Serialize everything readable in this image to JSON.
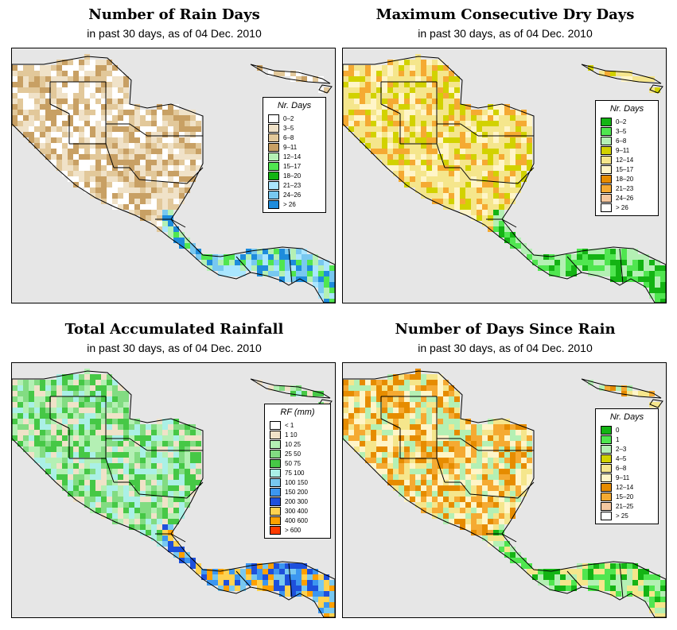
{
  "colors": {
    "ocean": "#e6e6e6",
    "land_border": "#000000"
  },
  "panels": [
    {
      "id": "rain-days",
      "title": "Number of Rain Days",
      "subtitle": "in past 30 days, as of  04 Dec. 2010",
      "legend_title": "Nr. Days",
      "legend": [
        {
          "label": "0–2",
          "color": "#ffffff"
        },
        {
          "label": "3–5",
          "color": "#f0e2c8"
        },
        {
          "label": "6–8",
          "color": "#e2c89a"
        },
        {
          "label": "9–11",
          "color": "#c8a064"
        },
        {
          "label": "12–14",
          "color": "#b4f0b4"
        },
        {
          "label": "15–17",
          "color": "#50e650"
        },
        {
          "label": "18–20",
          "color": "#14b414"
        },
        {
          "label": "21–23",
          "color": "#aae6ff"
        },
        {
          "label": "24–26",
          "color": "#78c8f0"
        },
        {
          "label": "> 26",
          "color": "#1e8cdc"
        }
      ]
    },
    {
      "id": "max-dry-days",
      "title": "Maximum Consecutive Dry Days",
      "subtitle": "in past 30 days, as of  04 Dec. 2010",
      "legend_title": "Nr. Days",
      "legend": [
        {
          "label": "0–2",
          "color": "#14b414"
        },
        {
          "label": "3–5",
          "color": "#50e650"
        },
        {
          "label": "6–8",
          "color": "#b4f0b4"
        },
        {
          "label": "9–11",
          "color": "#d2d200"
        },
        {
          "label": "12–14",
          "color": "#f5e68c"
        },
        {
          "label": "15–17",
          "color": "#fff5c8"
        },
        {
          "label": "18–20",
          "color": "#e68c00"
        },
        {
          "label": "21–23",
          "color": "#f5aa32"
        },
        {
          "label": "24–26",
          "color": "#f5c8a0"
        },
        {
          "label": "> 26",
          "color": "#ffffff"
        }
      ]
    },
    {
      "id": "total-rainfall",
      "title": "Total Accumulated Rainfall",
      "subtitle": "in past 30 days, as of  04 Dec. 2010",
      "legend_title": "RF (mm)",
      "legend": [
        {
          "label": "< 1",
          "color": "#ffffff"
        },
        {
          "label": "1   10",
          "color": "#f0e2c8"
        },
        {
          "label": "10   25",
          "color": "#b4f0b4"
        },
        {
          "label": "25   50",
          "color": "#82dc82"
        },
        {
          "label": "50   75",
          "color": "#46c846"
        },
        {
          "label": "75   100",
          "color": "#aaf0e6"
        },
        {
          "label": "100   150",
          "color": "#78c8f0"
        },
        {
          "label": "150   200",
          "color": "#3c96f0"
        },
        {
          "label": "200   300",
          "color": "#1e50dc"
        },
        {
          "label": "300   400",
          "color": "#ffd250"
        },
        {
          "label": "400   600",
          "color": "#ffa000"
        },
        {
          "label": "> 600",
          "color": "#ff3c00"
        }
      ]
    },
    {
      "id": "days-since-rain",
      "title": "Number of Days Since Rain",
      "subtitle": "in past 30 days, as of  04 Dec. 2010",
      "legend_title": "Nr. Days",
      "legend": [
        {
          "label": "0",
          "color": "#14b414"
        },
        {
          "label": "1",
          "color": "#50e650"
        },
        {
          "label": "2–3",
          "color": "#b4f0b4"
        },
        {
          "label": "4–5",
          "color": "#d2d200"
        },
        {
          "label": "6–8",
          "color": "#f5e68c"
        },
        {
          "label": "9–11",
          "color": "#fff5c8"
        },
        {
          "label": "12–14",
          "color": "#e68c00"
        },
        {
          "label": "15–20",
          "color": "#f5aa32"
        },
        {
          "label": "21–25",
          "color": "#f5c8a0"
        },
        {
          "label": "> 25",
          "color": "#ffffff"
        }
      ]
    }
  ]
}
